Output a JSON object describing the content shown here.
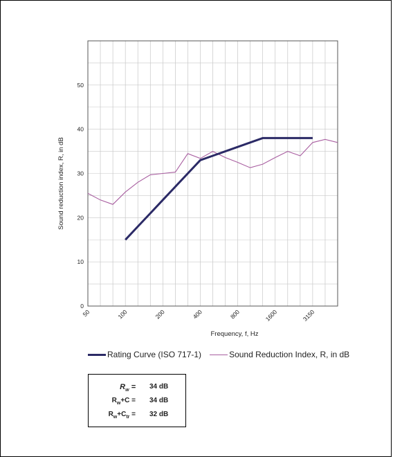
{
  "chart_data": {
    "type": "line",
    "xlabel": "Frequency, f, Hz",
    "ylabel": "Sound reduction index, R, in dB",
    "x_tick_labels": [
      "50",
      "100",
      "200",
      "400",
      "800",
      "1600",
      "3150"
    ],
    "y_ticks": [
      0,
      10,
      20,
      30,
      40,
      50
    ],
    "ylim": [
      0,
      60
    ],
    "grid": true,
    "series": [
      {
        "name": "Rating Curve (ISO 717-1)",
        "color": "#2b2a66",
        "x": [
          "100",
          "125",
          "160",
          "200",
          "250",
          "315",
          "400",
          "500",
          "630",
          "800",
          "1000",
          "1250",
          "1600",
          "2000",
          "2500",
          "3150"
        ],
        "values": [
          15,
          18,
          21,
          24,
          27,
          30,
          33,
          34,
          35,
          36,
          37,
          38,
          38,
          38,
          38,
          38
        ]
      },
      {
        "name": "Sound Reduction Index, R, in dB",
        "color": "#a85ea0",
        "x": [
          "50",
          "63",
          "80",
          "100",
          "125",
          "160",
          "200",
          "250",
          "315",
          "400",
          "500",
          "630",
          "800",
          "1000",
          "1250",
          "1600",
          "2000",
          "2500",
          "3150",
          "4000",
          "5000"
        ],
        "values": [
          25.5,
          24,
          23,
          25.8,
          28,
          29.7,
          30,
          30.3,
          34.5,
          33.4,
          35,
          33.6,
          32.5,
          31.3,
          32.1,
          33.6,
          35,
          34,
          37,
          37.7,
          37
        ]
      }
    ]
  },
  "results": [
    {
      "key_main": "R",
      "key_sub": "w",
      "key_tail": " =",
      "value": "34 dB",
      "italic": true
    },
    {
      "key_main": "R",
      "key_sub": "w",
      "key_tail": "+C =",
      "value": "34 dB",
      "italic": false
    },
    {
      "key_main": "R",
      "key_sub": "w",
      "key_tail": "+C",
      "key_sub2": "tr",
      "key_tail2": " =",
      "value": "32 dB",
      "italic": false
    }
  ]
}
